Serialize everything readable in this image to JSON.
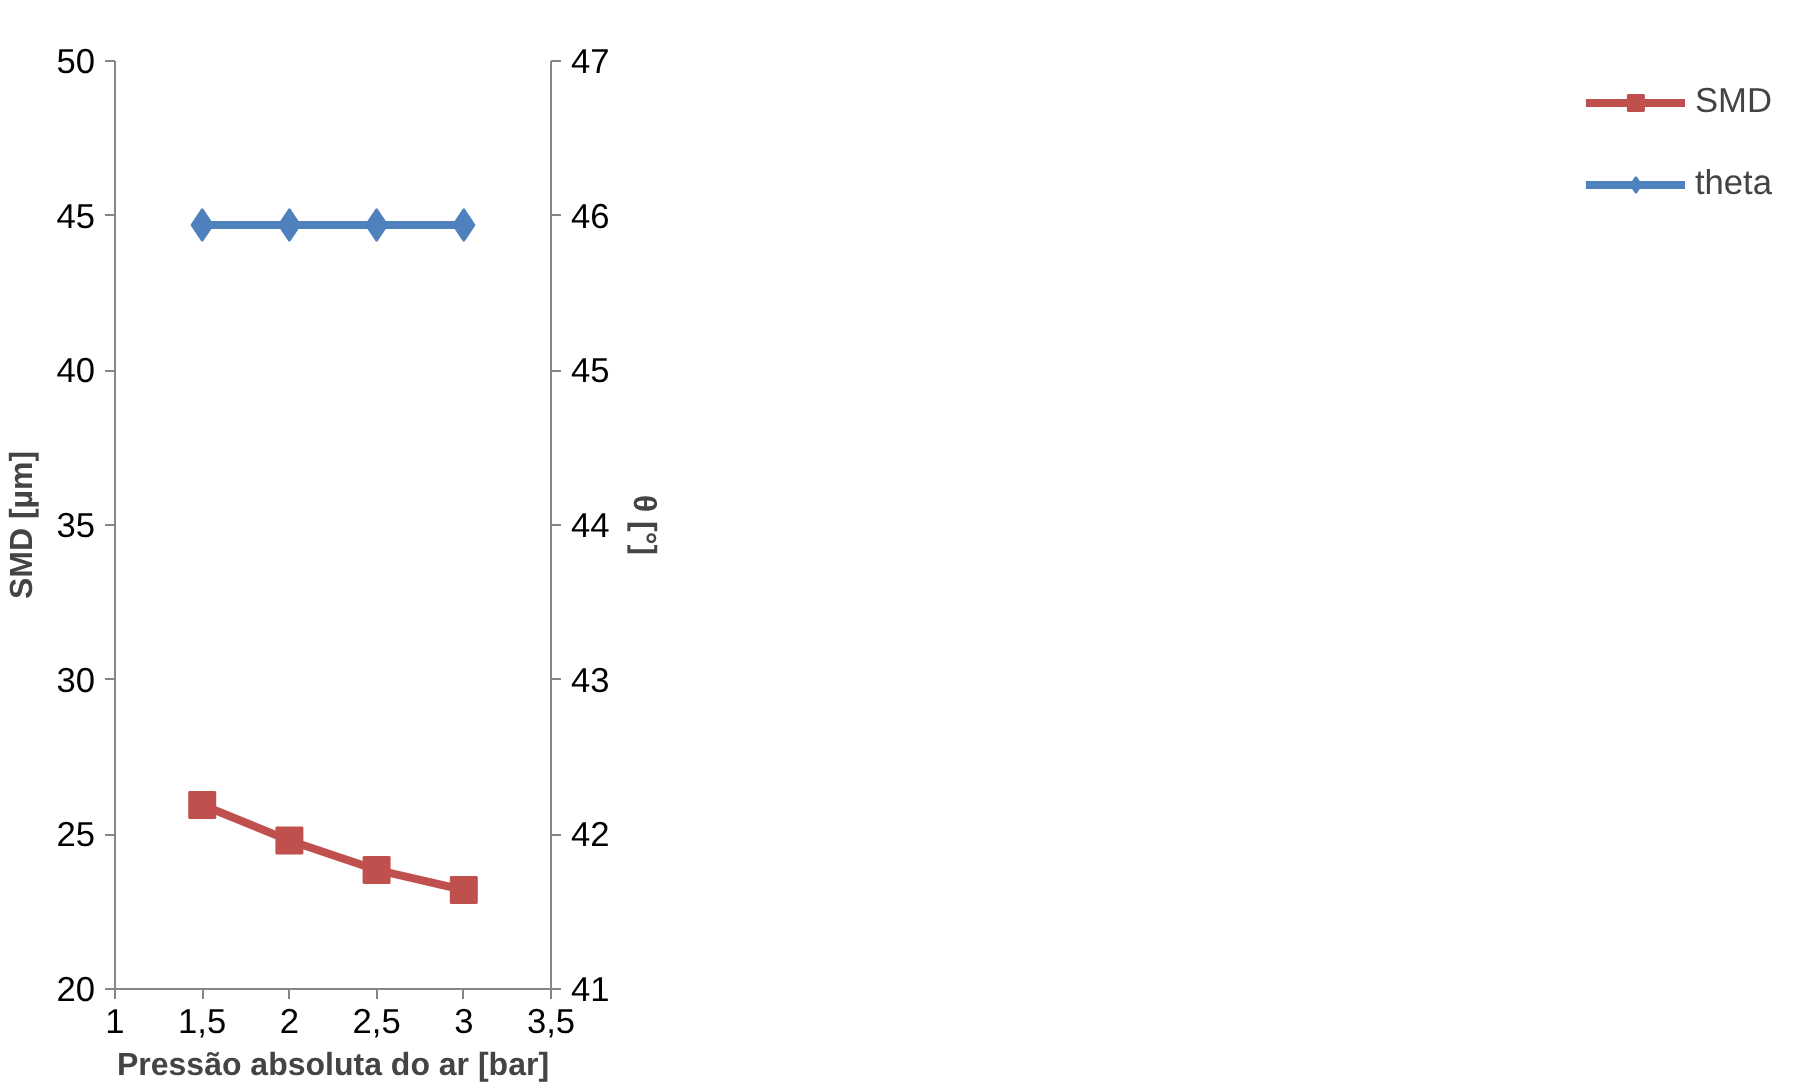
{
  "chart_data": {
    "type": "line",
    "xlabel": "Pressão absoluta do ar [bar]",
    "ylabel": "SMD [µm]",
    "y2label": "θ [°]",
    "x": [
      1.5,
      2,
      2.5,
      3
    ],
    "series": [
      {
        "name": "SMD",
        "color": "#c0504d",
        "marker": "square",
        "values": [
          25.95,
          24.8,
          23.85,
          23.2
        ]
      },
      {
        "name": "theta",
        "color": "#4f81bd",
        "marker": "diamond",
        "axis": "y2",
        "values": [
          45.94,
          45.94,
          45.94,
          45.94
        ]
      }
    ],
    "xlim": [
      1,
      3.5
    ],
    "xticks": [
      1,
      {
        "value": 1.5,
        "label": "1,5"
      },
      2,
      {
        "value": 2.5,
        "label": "2,5"
      },
      3,
      {
        "value": 3.5,
        "label": "3,5"
      }
    ],
    "ylim": [
      20,
      50
    ],
    "yticks": [
      20,
      25,
      30,
      35,
      40,
      45,
      50
    ],
    "y2lim": [
      41,
      47
    ],
    "y2ticks": [
      41,
      42,
      43,
      44,
      45,
      46,
      47
    ],
    "grid": false,
    "legend": "right",
    "line_style": "solid"
  }
}
